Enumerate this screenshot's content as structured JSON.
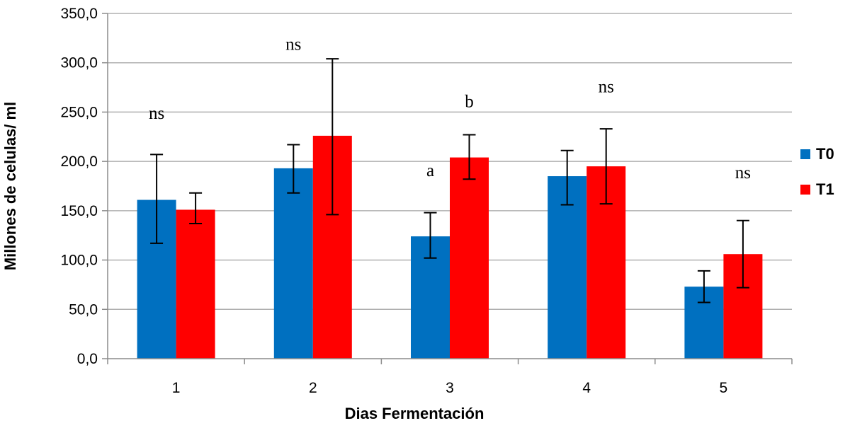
{
  "chart_data": {
    "type": "bar",
    "title": "",
    "xlabel": "Dias Fermentación",
    "ylabel": "Millones de celulas/ ml",
    "ylim": [
      0,
      350
    ],
    "yticks": [
      "0,0",
      "50,0",
      "100,0",
      "150,0",
      "200,0",
      "250,0",
      "300,0",
      "350,0"
    ],
    "ytick_values": [
      0,
      50,
      100,
      150,
      200,
      250,
      300,
      350
    ],
    "categories": [
      "1",
      "2",
      "3",
      "4",
      "5"
    ],
    "grid": true,
    "legend_position": "right",
    "series": [
      {
        "name": "T0",
        "color": "#0070C0",
        "values": [
          161,
          193,
          124,
          185,
          73
        ],
        "err_low": [
          117,
          168,
          102,
          156,
          57
        ],
        "err_high": [
          207,
          217,
          148,
          211,
          89
        ]
      },
      {
        "name": "T1",
        "color": "#FF0000",
        "values": [
          151,
          226,
          204,
          195,
          106
        ],
        "err_low": [
          137,
          146,
          182,
          157,
          72
        ],
        "err_high": [
          168,
          304,
          227,
          233,
          140
        ]
      }
    ],
    "annotations": [
      {
        "text": "ns",
        "category": "1",
        "series": "T0",
        "value": 243
      },
      {
        "text": "ns",
        "category": "2",
        "series": "T0",
        "value": 313
      },
      {
        "text": "a",
        "category": "3",
        "series": "T0",
        "value": 185
      },
      {
        "text": "b",
        "category": "3",
        "series": "T1",
        "value": 255
      },
      {
        "text": "ns",
        "category": "4",
        "series": "T1",
        "value": 270
      },
      {
        "text": "ns",
        "category": "5",
        "series": "T1",
        "value": 183
      }
    ]
  }
}
